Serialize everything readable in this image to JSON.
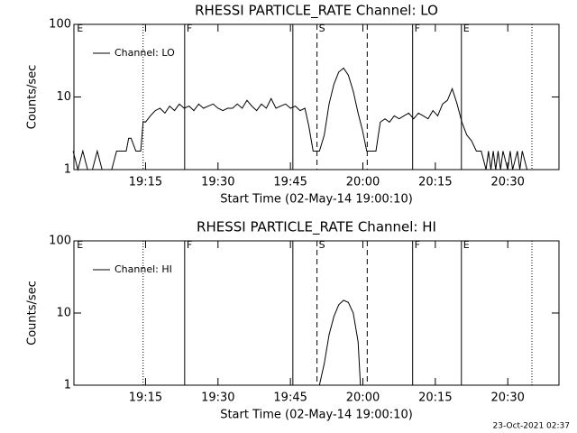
{
  "footer": "23-Oct-2021 02:37",
  "chart_data": [
    {
      "type": "line",
      "title": "RHESSI PARTICLE_RATE Channel: LO",
      "xlabel": "Start Time (02-May-14 19:00:10)",
      "ylabel": "Counts/sec",
      "log_y": true,
      "legend": "upper left",
      "xlim": [
        0.17,
        100.6
      ],
      "ylim": [
        1,
        100
      ],
      "yticks": [
        1,
        10,
        100
      ],
      "xticks": [
        {
          "value": 15,
          "label": "19:15"
        },
        {
          "value": 30,
          "label": "19:30"
        },
        {
          "value": 45,
          "label": "19:45"
        },
        {
          "value": 60,
          "label": "20:00"
        },
        {
          "value": 75,
          "label": "20:15"
        },
        {
          "value": 90,
          "label": "20:30"
        }
      ],
      "vlines": [
        {
          "x": 14.5,
          "style": "dotted"
        },
        {
          "x": 23.1,
          "style": "solid"
        },
        {
          "x": 45.5,
          "style": "solid"
        },
        {
          "x": 50.5,
          "style": "dashed"
        },
        {
          "x": 60.9,
          "style": "dashed"
        },
        {
          "x": 70.3,
          "style": "solid"
        },
        {
          "x": 80.4,
          "style": "solid"
        },
        {
          "x": 95,
          "style": "dotted"
        }
      ],
      "event_labels": [
        {
          "text": "E",
          "x": 0.4
        },
        {
          "text": "F",
          "x": 23.1
        },
        {
          "text": "S",
          "x": 50.5
        },
        {
          "text": "F",
          "x": 70.3
        },
        {
          "text": "E",
          "x": 80.4
        }
      ],
      "series": [
        {
          "name": "Channel: LO",
          "color": "#000000",
          "x": [
            0,
            1,
            2,
            3,
            4,
            5,
            6,
            7,
            8,
            9,
            10,
            11,
            11.5,
            12,
            13,
            14,
            14.5,
            15,
            16,
            17,
            18,
            19,
            20,
            21,
            22,
            23,
            24,
            25,
            26,
            27,
            28,
            29,
            30,
            31,
            32,
            33,
            34,
            35,
            36,
            37,
            38,
            39,
            40,
            41,
            42,
            43,
            44,
            45,
            46,
            47,
            48,
            48.8,
            49.7,
            51,
            52,
            53,
            54,
            55,
            56,
            57,
            58,
            59,
            59.9,
            60.8,
            62.7,
            63.6,
            64.6,
            65.5,
            66.5,
            67.5,
            68.5,
            69.5,
            70.5,
            71.5,
            72.5,
            73.5,
            74.5,
            75.5,
            76.5,
            77.5,
            78.5,
            79.5,
            80.5,
            81.5,
            82.5,
            83.5,
            84.5,
            85.5,
            86,
            86.5,
            87,
            87.5,
            88,
            88.5,
            89,
            90,
            90.5,
            91,
            92,
            92.5,
            93,
            94,
            94.6
          ],
          "values": [
            1.8,
            1,
            1.8,
            1,
            1,
            1.8,
            1,
            1,
            1,
            1.8,
            1.8,
            1.8,
            2.7,
            2.7,
            1.8,
            1.8,
            4.6,
            4.5,
            5.5,
            6.5,
            7,
            6,
            7.5,
            6.5,
            8,
            7,
            7.5,
            6.5,
            8,
            7,
            7.5,
            8,
            7,
            6.5,
            7,
            7,
            8,
            7,
            9,
            7.5,
            6.5,
            8,
            7,
            9.5,
            7,
            7.5,
            8,
            7,
            7.5,
            6.5,
            7,
            4,
            1.8,
            1.8,
            3,
            8,
            15,
            22,
            25,
            20,
            12,
            6,
            3.5,
            1.8,
            1.8,
            4.5,
            5,
            4.5,
            5.5,
            5,
            5.5,
            6,
            5,
            6,
            5.5,
            5,
            6.5,
            5.5,
            8,
            9,
            13,
            8,
            4.5,
            3,
            2.5,
            1.8,
            1.8,
            1,
            1.8,
            1,
            1.8,
            1,
            1.8,
            1,
            1.8,
            1,
            1.8,
            1,
            1.8,
            1,
            1.8,
            1,
            1
          ]
        }
      ]
    },
    {
      "type": "line",
      "title": "RHESSI PARTICLE_RATE Channel: HI",
      "xlabel": "Start Time (02-May-14 19:00:10)",
      "ylabel": "Counts/sec",
      "log_y": true,
      "legend": "upper left",
      "xlim": [
        0.17,
        100.6
      ],
      "ylim": [
        1,
        100
      ],
      "yticks": [
        1,
        10,
        100
      ],
      "xticks": [
        {
          "value": 15,
          "label": "19:15"
        },
        {
          "value": 30,
          "label": "19:30"
        },
        {
          "value": 45,
          "label": "19:45"
        },
        {
          "value": 60,
          "label": "20:00"
        },
        {
          "value": 75,
          "label": "20:15"
        },
        {
          "value": 90,
          "label": "20:30"
        }
      ],
      "vlines": [
        {
          "x": 14.5,
          "style": "dotted"
        },
        {
          "x": 23.1,
          "style": "solid"
        },
        {
          "x": 45.5,
          "style": "solid"
        },
        {
          "x": 50.5,
          "style": "dashed"
        },
        {
          "x": 60.9,
          "style": "dashed"
        },
        {
          "x": 70.3,
          "style": "solid"
        },
        {
          "x": 80.4,
          "style": "solid"
        },
        {
          "x": 95,
          "style": "dotted"
        }
      ],
      "event_labels": [
        {
          "text": "E",
          "x": 0.4
        },
        {
          "text": "F",
          "x": 23.1
        },
        {
          "text": "S",
          "x": 50.5
        },
        {
          "text": "F",
          "x": 70.3
        },
        {
          "text": "E",
          "x": 80.4
        }
      ],
      "series": [
        {
          "name": "Channel: HI",
          "color": "#000000",
          "x": [
            51,
            52,
            53,
            54,
            55,
            56,
            57,
            58,
            59,
            59.5
          ],
          "values": [
            1,
            2,
            5,
            9,
            13,
            15,
            14,
            10,
            4,
            1
          ]
        }
      ]
    }
  ]
}
